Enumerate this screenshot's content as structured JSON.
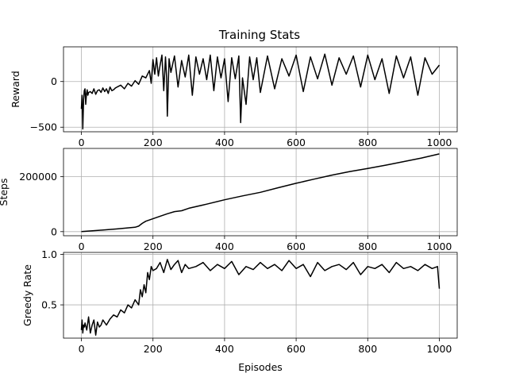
{
  "figure": {
    "title": "Training Stats"
  },
  "chart_data": [
    {
      "type": "line",
      "ylabel": "Reward",
      "xlabel": "",
      "xlim": [
        -50,
        1050
      ],
      "ylim": [
        -550,
        380
      ],
      "xticks": [
        0,
        200,
        400,
        600,
        800,
        1000
      ],
      "yticks": [
        -500,
        0
      ],
      "ytick_labels": [
        "−500",
        "0"
      ],
      "grid": true,
      "color": "#000000",
      "series": [
        {
          "x": [
            0,
            2,
            4,
            6,
            8,
            10,
            12,
            14,
            16,
            18,
            20,
            25,
            30,
            35,
            40,
            45,
            50,
            55,
            60,
            65,
            70,
            75,
            80,
            85,
            90,
            95,
            100,
            110,
            120,
            130,
            140,
            150,
            160,
            170,
            180,
            190,
            195,
            200,
            205,
            210,
            215,
            220,
            225,
            230,
            235,
            238,
            240,
            245,
            250,
            260,
            270,
            280,
            290,
            300,
            310,
            320,
            330,
            340,
            350,
            360,
            370,
            380,
            390,
            400,
            410,
            420,
            430,
            440,
            445,
            450,
            460,
            470,
            480,
            490,
            500,
            520,
            540,
            560,
            580,
            600,
            620,
            640,
            660,
            680,
            700,
            720,
            740,
            760,
            780,
            800,
            820,
            840,
            860,
            880,
            900,
            920,
            940,
            960,
            980,
            1000
          ],
          "y": [
            -300,
            -150,
            -520,
            -200,
            -100,
            -80,
            -250,
            -140,
            -90,
            -150,
            -120,
            -110,
            -130,
            -80,
            -140,
            -100,
            -90,
            -120,
            -70,
            -110,
            -80,
            -130,
            -60,
            -100,
            -90,
            -70,
            -60,
            -40,
            -80,
            -20,
            -50,
            10,
            -30,
            60,
            40,
            120,
            -20,
            240,
            80,
            260,
            60,
            180,
            290,
            -100,
            270,
            40,
            -380,
            250,
            100,
            280,
            -60,
            230,
            50,
            290,
            -150,
            270,
            80,
            250,
            20,
            290,
            -100,
            270,
            40,
            250,
            -220,
            260,
            30,
            280,
            -450,
            40,
            -250,
            270,
            20,
            260,
            -120,
            280,
            -80,
            250,
            60,
            290,
            -110,
            270,
            30,
            300,
            -40,
            260,
            80,
            280,
            -60,
            290,
            20,
            250,
            -130,
            280,
            40,
            270,
            -150,
            260,
            80,
            180
          ]
        }
      ]
    },
    {
      "type": "line",
      "ylabel": "Steps",
      "xlabel": "",
      "xlim": [
        -50,
        1050
      ],
      "ylim": [
        -15000,
        303000
      ],
      "xticks": [
        0,
        200,
        400,
        600,
        800,
        1000
      ],
      "yticks": [
        0,
        200000
      ],
      "ytick_labels": [
        "0",
        "200000"
      ],
      "grid": true,
      "color": "#000000",
      "series": [
        {
          "x": [
            0,
            50,
            100,
            150,
            160,
            170,
            180,
            200,
            220,
            240,
            260,
            280,
            300,
            350,
            400,
            450,
            500,
            550,
            600,
            650,
            700,
            750,
            800,
            850,
            900,
            950,
            1000
          ],
          "y": [
            0,
            5000,
            10000,
            16000,
            20000,
            30000,
            38000,
            47000,
            56000,
            65000,
            73000,
            76000,
            85000,
            100000,
            116000,
            130000,
            143000,
            160000,
            176000,
            191000,
            206000,
            219000,
            230000,
            242000,
            255000,
            268000,
            283000
          ]
        }
      ]
    },
    {
      "type": "line",
      "ylabel": "Greedy Rate",
      "xlabel": "Episodes",
      "xlim": [
        -50,
        1050
      ],
      "ylim": [
        0.17,
        1.02
      ],
      "xticks": [
        0,
        200,
        400,
        600,
        800,
        1000
      ],
      "yticks": [
        0.5,
        1.0
      ],
      "ytick_labels": [
        "0.5",
        "1.0"
      ],
      "grid": true,
      "color": "#000000",
      "series": [
        {
          "x": [
            0,
            2,
            4,
            6,
            8,
            10,
            15,
            20,
            25,
            30,
            35,
            40,
            45,
            50,
            55,
            60,
            70,
            80,
            90,
            100,
            110,
            120,
            130,
            140,
            150,
            160,
            165,
            170,
            175,
            180,
            185,
            190,
            195,
            200,
            210,
            220,
            230,
            240,
            250,
            260,
            270,
            280,
            290,
            300,
            320,
            340,
            360,
            380,
            400,
            420,
            440,
            460,
            480,
            500,
            520,
            540,
            560,
            580,
            600,
            620,
            640,
            660,
            680,
            700,
            720,
            740,
            760,
            780,
            800,
            820,
            840,
            860,
            880,
            900,
            920,
            940,
            960,
            980,
            995,
            1000
          ],
          "y": [
            0.25,
            0.35,
            0.22,
            0.3,
            0.28,
            0.32,
            0.25,
            0.38,
            0.22,
            0.3,
            0.35,
            0.2,
            0.33,
            0.28,
            0.3,
            0.35,
            0.3,
            0.36,
            0.4,
            0.38,
            0.45,
            0.42,
            0.5,
            0.47,
            0.55,
            0.5,
            0.65,
            0.58,
            0.7,
            0.62,
            0.82,
            0.75,
            0.88,
            0.84,
            0.86,
            0.92,
            0.82,
            0.95,
            0.85,
            0.9,
            0.94,
            0.82,
            0.9,
            0.86,
            0.88,
            0.92,
            0.84,
            0.9,
            0.86,
            0.93,
            0.8,
            0.88,
            0.85,
            0.92,
            0.86,
            0.9,
            0.84,
            0.94,
            0.86,
            0.9,
            0.78,
            0.92,
            0.84,
            0.88,
            0.9,
            0.85,
            0.92,
            0.8,
            0.88,
            0.86,
            0.9,
            0.82,
            0.92,
            0.86,
            0.88,
            0.84,
            0.9,
            0.86,
            0.88,
            0.66
          ]
        }
      ]
    }
  ]
}
